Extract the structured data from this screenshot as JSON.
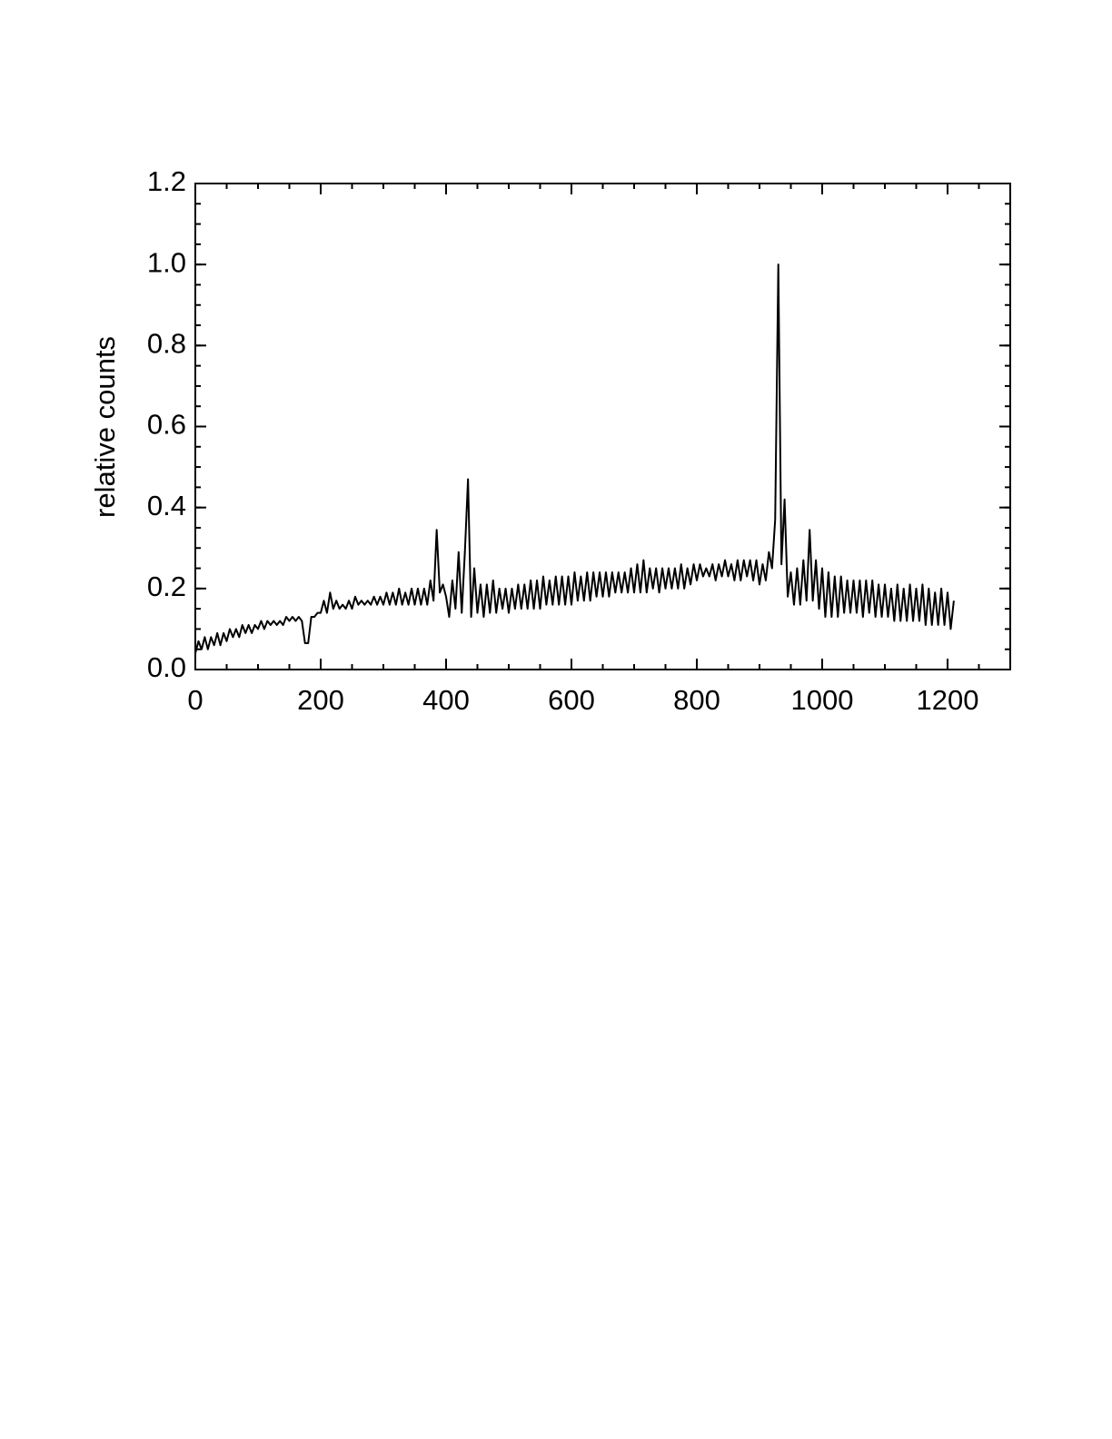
{
  "chart_data": {
    "type": "line",
    "ylabel": "relative counts",
    "x": [
      0,
      5,
      10,
      15,
      20,
      25,
      30,
      35,
      40,
      45,
      50,
      55,
      60,
      65,
      70,
      75,
      80,
      85,
      90,
      95,
      100,
      105,
      110,
      115,
      120,
      125,
      130,
      135,
      140,
      145,
      150,
      155,
      160,
      165,
      170,
      175,
      180,
      185,
      190,
      195,
      200,
      205,
      210,
      215,
      220,
      225,
      230,
      235,
      240,
      245,
      250,
      255,
      260,
      265,
      270,
      275,
      280,
      285,
      290,
      295,
      300,
      305,
      310,
      315,
      320,
      325,
      330,
      335,
      340,
      345,
      350,
      355,
      360,
      365,
      370,
      375,
      380,
      385,
      390,
      395,
      400,
      405,
      410,
      415,
      420,
      425,
      430,
      435,
      440,
      445,
      450,
      455,
      460,
      465,
      470,
      475,
      480,
      485,
      490,
      495,
      500,
      505,
      510,
      515,
      520,
      525,
      530,
      535,
      540,
      545,
      550,
      555,
      560,
      565,
      570,
      575,
      580,
      585,
      590,
      595,
      600,
      605,
      610,
      615,
      620,
      625,
      630,
      635,
      640,
      645,
      650,
      655,
      660,
      665,
      670,
      675,
      680,
      685,
      690,
      695,
      700,
      705,
      710,
      715,
      720,
      725,
      730,
      735,
      740,
      745,
      750,
      755,
      760,
      765,
      770,
      775,
      780,
      785,
      790,
      795,
      800,
      805,
      810,
      815,
      820,
      825,
      830,
      835,
      840,
      845,
      850,
      855,
      860,
      865,
      870,
      875,
      880,
      885,
      890,
      895,
      900,
      905,
      910,
      915,
      920,
      925,
      930,
      935,
      940,
      945,
      950,
      955,
      960,
      965,
      970,
      975,
      980,
      985,
      990,
      995,
      1000,
      1005,
      1010,
      1015,
      1020,
      1025,
      1030,
      1035,
      1040,
      1045,
      1050,
      1055,
      1060,
      1065,
      1070,
      1075,
      1080,
      1085,
      1090,
      1095,
      1100,
      1105,
      1110,
      1115,
      1120,
      1125,
      1130,
      1135,
      1140,
      1145,
      1150,
      1155,
      1160,
      1165,
      1170,
      1175,
      1180,
      1185,
      1190,
      1195,
      1200,
      1205,
      1210
    ],
    "series": [
      {
        "color": "#000000",
        "values": [
          0.04,
          0.07,
          0.05,
          0.08,
          0.05,
          0.08,
          0.06,
          0.09,
          0.06,
          0.09,
          0.07,
          0.1,
          0.08,
          0.1,
          0.08,
          0.11,
          0.09,
          0.11,
          0.09,
          0.11,
          0.1,
          0.12,
          0.1,
          0.12,
          0.11,
          0.12,
          0.11,
          0.12,
          0.11,
          0.13,
          0.12,
          0.13,
          0.12,
          0.13,
          0.12,
          0.065,
          0.065,
          0.13,
          0.13,
          0.14,
          0.14,
          0.17,
          0.14,
          0.19,
          0.15,
          0.17,
          0.15,
          0.16,
          0.15,
          0.17,
          0.15,
          0.18,
          0.16,
          0.17,
          0.16,
          0.17,
          0.16,
          0.18,
          0.16,
          0.18,
          0.16,
          0.19,
          0.16,
          0.19,
          0.16,
          0.2,
          0.16,
          0.19,
          0.16,
          0.2,
          0.16,
          0.2,
          0.16,
          0.2,
          0.16,
          0.22,
          0.17,
          0.345,
          0.19,
          0.21,
          0.18,
          0.13,
          0.22,
          0.15,
          0.29,
          0.14,
          0.29,
          0.47,
          0.13,
          0.25,
          0.14,
          0.21,
          0.13,
          0.21,
          0.14,
          0.22,
          0.14,
          0.2,
          0.15,
          0.2,
          0.14,
          0.2,
          0.15,
          0.21,
          0.15,
          0.21,
          0.15,
          0.22,
          0.15,
          0.22,
          0.15,
          0.23,
          0.16,
          0.22,
          0.16,
          0.23,
          0.16,
          0.23,
          0.16,
          0.23,
          0.16,
          0.24,
          0.17,
          0.23,
          0.17,
          0.24,
          0.17,
          0.24,
          0.18,
          0.24,
          0.18,
          0.24,
          0.18,
          0.24,
          0.19,
          0.24,
          0.19,
          0.24,
          0.19,
          0.25,
          0.19,
          0.26,
          0.19,
          0.27,
          0.19,
          0.25,
          0.2,
          0.25,
          0.19,
          0.25,
          0.2,
          0.25,
          0.2,
          0.25,
          0.2,
          0.26,
          0.2,
          0.25,
          0.21,
          0.26,
          0.22,
          0.26,
          0.23,
          0.25,
          0.23,
          0.26,
          0.22,
          0.26,
          0.23,
          0.27,
          0.23,
          0.26,
          0.22,
          0.27,
          0.22,
          0.27,
          0.23,
          0.27,
          0.22,
          0.27,
          0.21,
          0.26,
          0.22,
          0.29,
          0.25,
          0.37,
          1.0,
          0.26,
          0.42,
          0.18,
          0.24,
          0.16,
          0.25,
          0.16,
          0.27,
          0.17,
          0.345,
          0.17,
          0.27,
          0.15,
          0.25,
          0.13,
          0.24,
          0.13,
          0.23,
          0.13,
          0.23,
          0.14,
          0.22,
          0.14,
          0.22,
          0.14,
          0.22,
          0.13,
          0.22,
          0.14,
          0.22,
          0.13,
          0.21,
          0.13,
          0.21,
          0.13,
          0.2,
          0.12,
          0.21,
          0.12,
          0.2,
          0.12,
          0.21,
          0.12,
          0.2,
          0.12,
          0.21,
          0.11,
          0.2,
          0.11,
          0.19,
          0.11,
          0.2,
          0.11,
          0.19,
          0.1,
          0.17
        ]
      }
    ],
    "xlim": [
      0,
      1300
    ],
    "xticks": [
      0,
      200,
      400,
      600,
      800,
      1000,
      1200
    ],
    "ylim": [
      0,
      1.2
    ],
    "yticks": [
      {
        "value": 0,
        "label": "0.0"
      },
      0.2,
      0.4,
      0.6,
      0.8,
      {
        "value": 1,
        "label": "1.0"
      },
      1.2
    ]
  }
}
